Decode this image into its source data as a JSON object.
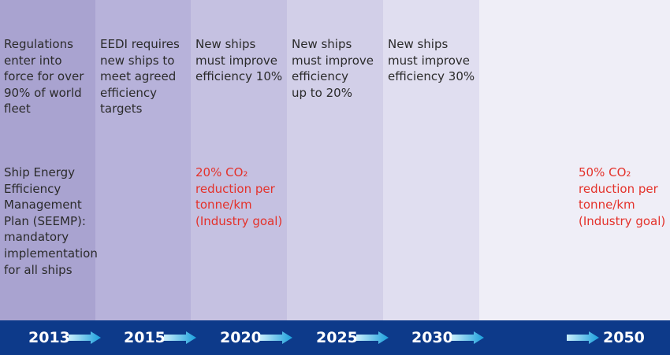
{
  "columns": [
    {
      "top_lines": [
        "Regulations",
        "enter into",
        "force for over",
        "90% of world",
        "fleet"
      ],
      "bottom_lines": [
        "Ship Energy",
        "Efficiency",
        "Management",
        "Plan (SEEMP):",
        "mandatory",
        "implementation",
        "for all ships"
      ]
    },
    {
      "top_lines": [
        "EEDI requires",
        "new ships to",
        "meet agreed",
        "efficiency",
        "targets"
      ]
    },
    {
      "top_lines": [
        "New ships",
        "must improve",
        "efficiency 10%"
      ],
      "goal_lines": [
        "20% CO₂",
        "reduction per",
        "tonne/km",
        "(Industry goal)"
      ]
    },
    {
      "top_lines": [
        "New ships",
        "must improve",
        "efficiency",
        "up to 20%"
      ]
    },
    {
      "top_lines": [
        "New ships",
        "must improve",
        "efficiency 30%"
      ]
    },
    {
      "goal_lines": [
        "50% CO₂",
        "reduction per",
        "tonne/km",
        "(Industry goal)"
      ]
    }
  ],
  "years": [
    "2013",
    "2015",
    "2020",
    "2025",
    "2030",
    "2050"
  ],
  "colors": {
    "bar": "#0d3a8a",
    "goal_text": "#e4322b",
    "arrow_light": "#c9eefb",
    "arrow_dark": "#1a9fdc"
  }
}
